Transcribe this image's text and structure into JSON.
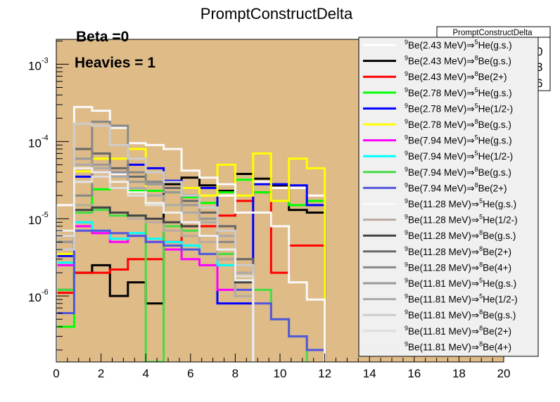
{
  "colors": {
    "plot_bg": "#dfbb88",
    "legend_bg": "#f0f0f0"
  },
  "stats_box": {
    "title": "PromptConstructDelta",
    "values": [
      "0",
      "3",
      "6"
    ]
  },
  "chart_data": {
    "type": "histogram",
    "title": "PromptConstructDelta",
    "xlabel": "",
    "ylabel": "",
    "xlim": [
      0,
      20
    ],
    "ylim": [
      1.4e-07,
      0.0021
    ],
    "yscale": "log",
    "x_ticks": [
      "0",
      "2",
      "4",
      "6",
      "8",
      "10",
      "12",
      "14",
      "16",
      "18",
      "20"
    ],
    "y_ticks": [
      {
        "base": "10",
        "exp": "-3",
        "value": 0.001
      },
      {
        "base": "10",
        "exp": "-4",
        "value": 0.0001
      },
      {
        "base": "10",
        "exp": "-5",
        "value": 1e-05
      },
      {
        "base": "10",
        "exp": "-6",
        "value": 1e-06
      }
    ],
    "annotations": [
      "Beta =0",
      "Heavies = 1"
    ],
    "legend_position": "right",
    "bin_edges": [
      0,
      0.8,
      1.6,
      2.4,
      3.2,
      4.0,
      4.8,
      5.6,
      6.4,
      7.2,
      8.0,
      8.8,
      9.6,
      10.4,
      11.2,
      12.0
    ],
    "series": [
      {
        "name": "Be(2.43 MeV)⇒He(g.s.)",
        "pre1": "9",
        "mid": "Be(2.43 MeV)⇒",
        "pre2": "5",
        "end": "He(g.s.)",
        "color": "#ffffff",
        "values": [
          1.5e-05,
          3e-05,
          4e-05,
          3.8e-05,
          3.5e-05,
          3e-05,
          2.8e-05,
          2.5e-05,
          2e-05,
          2e-05,
          3.2e-05,
          3e-05,
          2.5e-05,
          2.5e-05,
          2e-05
        ]
      },
      {
        "name": "Be(2.43 MeV)⇒Be(g.s.)",
        "pre1": "9",
        "mid": "Be(2.43 MeV)⇒",
        "pre2": "8",
        "end": "Be(g.s.)",
        "color": "#000000",
        "values": [
          1.2e-06,
          2e-06,
          2.5e-06,
          1e-06,
          1.5e-06,
          8e-07,
          2.8e-05,
          3.4e-05,
          2.7e-05,
          2.3e-05,
          3.8e-05,
          3.3e-05,
          2.7e-05,
          1.3e-05,
          1.2e-05
        ]
      },
      {
        "name": "Be(2.43 MeV)⇒Be(2+)",
        "pre1": "9",
        "mid": "Be(2.43 MeV)⇒",
        "pre2": "8",
        "end": "Be(2+)",
        "color": "#ff0000",
        "values": [
          1.1e-06,
          2e-06,
          2e-06,
          2.2e-06,
          3e-06,
          3e-06,
          5e-06,
          8e-06,
          8e-06,
          1.1e-05,
          1.7e-05,
          2.2e-05,
          2e-06,
          4.5e-06,
          4.5e-06
        ]
      },
      {
        "name": "Be(2.78 MeV)⇒He(g.s.)",
        "pre1": "9",
        "mid": "Be(2.78 MeV)⇒",
        "pre2": "5",
        "end": "He(g.s.)",
        "color": "#00ff00",
        "values": [
          4e-07,
          1.5e-05,
          2.4e-05,
          2.5e-05,
          2.3e-05,
          2.3e-05,
          2.2e-05,
          1.9e-05,
          1.6e-05,
          2.2e-05,
          3.2e-05,
          2.2e-05,
          1.7e-05,
          1.5e-05,
          1.7e-05
        ]
      },
      {
        "name": "Be(2.78 MeV)⇒He(1/2-)",
        "pre1": "9",
        "mid": "Be(2.78 MeV)⇒",
        "pre2": "5",
        "end": "He(1/2-)",
        "color": "#0000ff",
        "values": [
          3.3e-06,
          3.5e-05,
          4e-05,
          4e-05,
          5e-05,
          4.5e-05,
          3.1e-05,
          2e-05,
          2.5e-05,
          8e-07,
          8e-07,
          2.8e-05,
          2.8e-05,
          2.7e-05,
          1.5e-05
        ]
      },
      {
        "name": "Be(2.78 MeV)⇒Be(g.s.)",
        "pre1": "9",
        "mid": "Be(2.78 MeV)⇒",
        "pre2": "8",
        "end": "Be(g.s.)",
        "color": "#ffff00",
        "values": [
          3.5e-06,
          4.1e-05,
          6e-05,
          6e-05,
          8e-05,
          1.5e-05,
          1.5e-05,
          2.5e-05,
          2e-05,
          5e-05,
          2e-05,
          7e-05,
          1.7e-05,
          6e-05,
          4.5e-05
        ]
      },
      {
        "name": "Be(7.94 MeV)⇒He(g.s.)",
        "pre1": "9",
        "mid": "Be(7.94 MeV)⇒",
        "pre2": "5",
        "end": "He(g.s.)",
        "color": "#ff00ff",
        "values": [
          2.5e-06,
          8e-06,
          6.5e-06,
          5e-06,
          6e-06,
          5e-06,
          4e-06,
          3e-06,
          2.5e-06,
          1.2e-06,
          1e-06
        ]
      },
      {
        "name": "Be(7.94 MeV)⇒He(1/2-)",
        "pre1": "9",
        "mid": "Be(7.94 MeV)⇒",
        "pre2": "5",
        "end": "He(1/2-)",
        "color": "#00ffff",
        "values": [
          2.7e-06,
          9e-06,
          7e-06,
          5.5e-06,
          6.5e-06,
          5.5e-06,
          5e-06,
          4.5e-06,
          3.5e-06,
          2.5e-06,
          1e-06
        ]
      },
      {
        "name": "Be(7.94 MeV)⇒Be(g.s.)",
        "pre1": "9",
        "mid": "Be(7.94 MeV)⇒",
        "pre2": "8",
        "end": "Be(g.s.)",
        "color": "#44dd44",
        "values": [
          1.2e-06,
          1.2e-05,
          1.3e-05,
          1.1e-05,
          1.1e-05,
          1.3e-07,
          8e-06,
          7e-06,
          6e-06,
          3.5e-06,
          1e-06,
          1.2e-06,
          5e-07,
          3e-07
        ]
      },
      {
        "name": "Be(7.94 MeV)⇒Be(2+)",
        "pre1": "9",
        "mid": "Be(7.94 MeV)⇒",
        "pre2": "8",
        "end": "Be(2+)",
        "color": "#5555dd",
        "values": [
          6e-07,
          7e-06,
          7e-06,
          6.5e-06,
          6e-06,
          5e-06,
          4.5e-06,
          4e-06,
          3.5e-06,
          3e-06,
          1.2e-06,
          8e-07,
          5e-07,
          3e-07,
          2e-07
        ]
      },
      {
        "name": "Be(11.28 MeV)⇒He(g.s.)",
        "pre1": "9",
        "mid": "Be(11.28 MeV)⇒",
        "pre2": "5",
        "end": "He(g.s.)",
        "color": "#fafafa",
        "values": [
          1.5e-05,
          0.00028,
          0.00025,
          0.00015,
          9.5e-05,
          9e-05,
          8e-05,
          4.2e-05,
          3.4e-05,
          2.8e-05,
          1.2e-05,
          1.2e-05,
          8e-06,
          1.5e-06,
          9e-07
        ]
      },
      {
        "name": "Be(11.28 MeV)⇒He(1/2-)",
        "pre1": "9",
        "mid": "Be(11.28 MeV)⇒",
        "pre2": "5",
        "end": "He(1/2-)",
        "color": "#bbaaa0",
        "values": [
          5e-06,
          1.5e-05,
          1.4e-05,
          1.2e-05,
          1e-05,
          9e-06,
          7e-06,
          6e-06,
          5e-06,
          3e-06,
          1e-06
        ]
      },
      {
        "name": "Be(11.28 MeV)⇒Be(g.s.)",
        "pre1": "9",
        "mid": "Be(11.28 MeV)⇒",
        "pre2": "8",
        "end": "Be(g.s.)",
        "color": "#444444",
        "values": [
          4e-06,
          1.3e-05,
          1.4e-05,
          1.2e-05,
          1.1e-05,
          1e-05,
          9e-06,
          8e-06,
          6e-06,
          4e-06,
          1.5e-06
        ]
      },
      {
        "name": "Be(11.28 MeV)⇒Be(2+)",
        "pre1": "9",
        "mid": "Be(11.28 MeV)⇒",
        "pre2": "8",
        "end": "Be(2+)",
        "color": "#666666",
        "values": [
          5e-06,
          8e-05,
          7e-05,
          4.5e-05,
          3.5e-05,
          3e-05,
          2.5e-05,
          1.7e-05,
          1.2e-05,
          8e-06,
          3e-06
        ]
      },
      {
        "name": "Be(11.28 MeV)⇒Be(4+)",
        "pre1": "9",
        "mid": "Be(11.28 MeV)⇒",
        "pre2": "8",
        "end": "Be(4+)",
        "color": "#888888",
        "values": [
          6e-06,
          2e-05,
          0.00018,
          0.00016,
          4e-05,
          3e-05,
          2.2e-05,
          1.5e-05,
          1e-05,
          5e-06,
          2e-06
        ]
      },
      {
        "name": "Be(11.81 MeV)⇒He(g.s.)",
        "pre1": "9",
        "mid": "Be(11.81 MeV)⇒",
        "pre2": "5",
        "end": "He(g.s.)",
        "color": "#999999",
        "values": [
          5e-06,
          6e-05,
          5e-05,
          4e-05,
          3e-05,
          2.8e-05,
          2.2e-05,
          1.5e-05,
          1e-05,
          6e-06,
          2.5e-06
        ]
      },
      {
        "name": "Be(11.81 MeV)⇒He(1/2-)",
        "pre1": "9",
        "mid": "Be(11.81 MeV)⇒",
        "pre2": "5",
        "end": "He(1/2-)",
        "color": "#aaaaaa",
        "values": [
          4e-06,
          5e-05,
          4.5e-05,
          3.5e-05,
          2.5e-05,
          2e-05,
          1.5e-05,
          1.2e-05,
          9e-06,
          6e-06,
          2e-06
        ]
      },
      {
        "name": "Be(11.81 MeV)⇒Be(g.s.)",
        "pre1": "9",
        "mid": "Be(11.81 MeV)⇒",
        "pre2": "8",
        "end": "Be(g.s.)",
        "color": "#cccccc",
        "values": [
          4e-06,
          0.00017,
          0.00016,
          9e-05,
          6e-05,
          4e-05,
          3e-05,
          2e-05,
          1.4e-05,
          7e-06,
          2.5e-06
        ]
      },
      {
        "name": "Be(11.81 MeV)⇒Be(2+)",
        "pre1": "9",
        "mid": "Be(11.81 MeV)⇒",
        "pre2": "8",
        "end": "Be(2+)",
        "color": "#dddddd",
        "values": [
          6e-06,
          3e-05,
          3.5e-05,
          2.5e-05,
          2e-05,
          1.5e-05,
          1.2e-05,
          9e-06,
          6e-06,
          4e-06,
          1.8e-06
        ]
      },
      {
        "name": "Be(11.81 MeV)⇒Be(4+)",
        "pre1": "9",
        "mid": "Be(11.81 MeV)⇒",
        "pre2": "8",
        "end": "Be(4+)",
        "color": "#eeeeee",
        "values": [
          7e-06,
          4.5e-05,
          4e-05,
          3e-05,
          2.2e-05,
          1.6e-05,
          1.2e-05,
          9e-06,
          6e-06,
          4e-06,
          1.6e-06
        ]
      }
    ]
  }
}
